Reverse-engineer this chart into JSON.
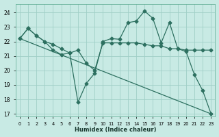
{
  "xlabel": "Humidex (Indice chaleur)",
  "xlim": [
    -0.5,
    23.5
  ],
  "ylim": [
    16.8,
    24.6
  ],
  "yticks": [
    17,
    18,
    19,
    20,
    21,
    22,
    23,
    24
  ],
  "xticks": [
    0,
    1,
    2,
    3,
    4,
    5,
    6,
    7,
    8,
    9,
    10,
    11,
    12,
    13,
    14,
    15,
    16,
    17,
    18,
    19,
    20,
    21,
    22,
    23
  ],
  "bg_color": "#c8eae4",
  "grid_color": "#a0cfc7",
  "line_color": "#2d7060",
  "line1_x": [
    0,
    1,
    2,
    3,
    4,
    5,
    6,
    7,
    8,
    9,
    10,
    11,
    12,
    13,
    14,
    15,
    16,
    17,
    18,
    19,
    20,
    21,
    22,
    23
  ],
  "line1_y": [
    22.2,
    22.9,
    22.4,
    22.0,
    21.4,
    21.1,
    21.2,
    17.8,
    19.1,
    19.8,
    22.0,
    22.2,
    22.15,
    23.3,
    23.4,
    24.1,
    23.6,
    21.9,
    23.3,
    21.5,
    21.3,
    19.7,
    18.6,
    17.0
  ],
  "line2_x": [
    0,
    1,
    2,
    3,
    4,
    5,
    6,
    7,
    8,
    9,
    10,
    11,
    12,
    13,
    14,
    15,
    16,
    17,
    18,
    19,
    20,
    21,
    22,
    23
  ],
  "line2_y": [
    22.2,
    22.9,
    22.4,
    22.0,
    21.8,
    21.5,
    21.2,
    21.4,
    20.5,
    20.0,
    21.9,
    21.9,
    21.9,
    21.9,
    21.9,
    21.8,
    21.7,
    21.7,
    21.5,
    21.5,
    21.4,
    21.4,
    21.4,
    21.4
  ],
  "line3_x": [
    0,
    23
  ],
  "line3_y": [
    22.2,
    17.0
  ],
  "marker": "D",
  "marker_size": 2.5
}
